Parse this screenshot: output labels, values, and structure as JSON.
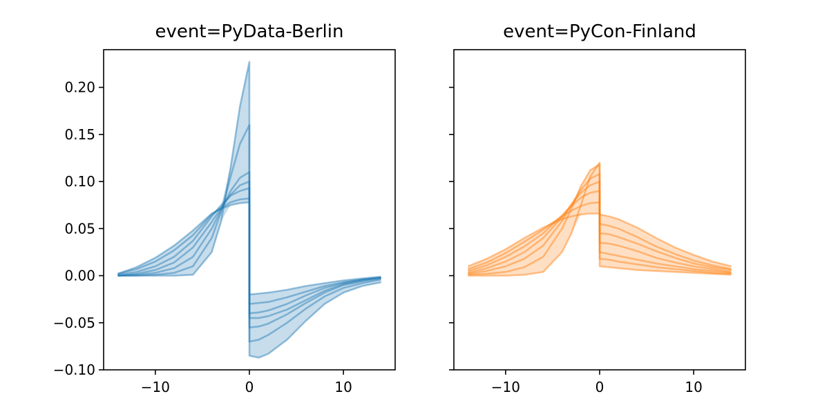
{
  "chart_data": [
    {
      "type": "line",
      "title": "event=PyData-Berlin",
      "color": "#1f77b4",
      "xlim": [
        -15.5,
        15.5
      ],
      "ylim": [
        -0.1,
        0.24
      ],
      "xticks": [
        -10,
        0,
        10
      ],
      "xtick_labels": [
        "−10",
        "0",
        "10"
      ],
      "yticks": [
        -0.1,
        -0.05,
        0.0,
        0.05,
        0.1,
        0.15,
        0.2
      ],
      "ytick_labels": [
        "−0.10",
        "−0.05",
        "0.00",
        "0.05",
        "0.10",
        "0.15",
        "0.20"
      ],
      "show_ytick_labels": true,
      "x": [
        -14,
        -12,
        -10,
        -8,
        -6,
        -4,
        -3,
        -2,
        -1,
        0,
        0,
        1,
        2,
        4,
        6,
        8,
        10,
        12,
        14
      ],
      "series": [
        {
          "values": [
            0.0,
            0.0,
            0.0,
            0.0,
            0.001,
            0.025,
            0.058,
            0.115,
            0.18,
            0.227,
            -0.085,
            -0.087,
            -0.083,
            -0.068,
            -0.048,
            -0.03,
            -0.018,
            -0.011,
            -0.007
          ]
        },
        {
          "values": [
            0.0,
            0.0,
            0.001,
            0.003,
            0.01,
            0.04,
            0.068,
            0.105,
            0.14,
            0.16,
            -0.07,
            -0.068,
            -0.063,
            -0.05,
            -0.035,
            -0.022,
            -0.013,
            -0.008,
            -0.004
          ]
        },
        {
          "values": [
            0.0,
            0.001,
            0.003,
            0.008,
            0.02,
            0.05,
            0.07,
            0.09,
            0.104,
            0.11,
            -0.055,
            -0.054,
            -0.051,
            -0.041,
            -0.029,
            -0.018,
            -0.01,
            -0.006,
            -0.003
          ]
        },
        {
          "values": [
            0.0,
            0.002,
            0.006,
            0.014,
            0.03,
            0.057,
            0.072,
            0.086,
            0.096,
            0.1,
            -0.045,
            -0.045,
            -0.043,
            -0.036,
            -0.026,
            -0.016,
            -0.009,
            -0.005,
            -0.002
          ]
        },
        {
          "values": [
            0.001,
            0.004,
            0.01,
            0.02,
            0.037,
            0.063,
            0.075,
            0.085,
            0.09,
            0.093,
            -0.04,
            -0.039,
            -0.037,
            -0.03,
            -0.021,
            -0.013,
            -0.008,
            -0.004,
            -0.002
          ]
        },
        {
          "values": [
            0.002,
            0.007,
            0.015,
            0.027,
            0.043,
            0.065,
            0.072,
            0.078,
            0.081,
            0.082,
            -0.03,
            -0.029,
            -0.028,
            -0.023,
            -0.017,
            -0.011,
            -0.007,
            -0.004,
            -0.002
          ]
        },
        {
          "values": [
            0.002,
            0.009,
            0.019,
            0.032,
            0.048,
            0.066,
            0.071,
            0.075,
            0.077,
            0.078,
            -0.02,
            -0.019,
            -0.018,
            -0.015,
            -0.011,
            -0.008,
            -0.005,
            -0.003,
            -0.001
          ]
        }
      ]
    },
    {
      "type": "line",
      "title": "event=PyCon-Finland",
      "color": "#ff7f0e",
      "xlim": [
        -15.5,
        15.5
      ],
      "ylim": [
        -0.1,
        0.24
      ],
      "xticks": [
        -10,
        0,
        10
      ],
      "xtick_labels": [
        "−10",
        "0",
        "10"
      ],
      "yticks": [
        -0.1,
        -0.05,
        0.0,
        0.05,
        0.1,
        0.15,
        0.2
      ],
      "ytick_labels": [],
      "show_ytick_labels": false,
      "x": [
        -14,
        -12,
        -10,
        -8,
        -6,
        -4,
        -3,
        -2,
        -1,
        0,
        0,
        1,
        2,
        4,
        6,
        8,
        10,
        12,
        14
      ],
      "series": [
        {
          "values": [
            0.0,
            0.0,
            0.0,
            0.001,
            0.004,
            0.025,
            0.045,
            0.075,
            0.105,
            0.12,
            0.01,
            0.009,
            0.008,
            0.006,
            0.005,
            0.004,
            0.003,
            0.002,
            0.001
          ]
        },
        {
          "values": [
            0.001,
            0.002,
            0.004,
            0.009,
            0.02,
            0.05,
            0.071,
            0.095,
            0.112,
            0.118,
            0.018,
            0.017,
            0.015,
            0.012,
            0.009,
            0.007,
            0.005,
            0.003,
            0.002
          ]
        },
        {
          "values": [
            0.002,
            0.005,
            0.01,
            0.018,
            0.032,
            0.058,
            0.075,
            0.091,
            0.103,
            0.108,
            0.025,
            0.023,
            0.021,
            0.017,
            0.013,
            0.01,
            0.007,
            0.005,
            0.003
          ]
        },
        {
          "values": [
            0.003,
            0.008,
            0.015,
            0.025,
            0.04,
            0.062,
            0.076,
            0.088,
            0.096,
            0.1,
            0.035,
            0.034,
            0.032,
            0.026,
            0.019,
            0.014,
            0.01,
            0.007,
            0.004
          ]
        },
        {
          "values": [
            0.005,
            0.011,
            0.02,
            0.031,
            0.045,
            0.064,
            0.074,
            0.083,
            0.088,
            0.09,
            0.045,
            0.044,
            0.041,
            0.034,
            0.026,
            0.019,
            0.013,
            0.009,
            0.006
          ]
        },
        {
          "values": [
            0.007,
            0.014,
            0.024,
            0.036,
            0.049,
            0.063,
            0.069,
            0.074,
            0.077,
            0.078,
            0.055,
            0.053,
            0.05,
            0.041,
            0.031,
            0.023,
            0.016,
            0.011,
            0.007
          ]
        },
        {
          "values": [
            0.01,
            0.018,
            0.028,
            0.04,
            0.051,
            0.06,
            0.063,
            0.065,
            0.066,
            0.066,
            0.065,
            0.063,
            0.06,
            0.051,
            0.04,
            0.03,
            0.022,
            0.015,
            0.01
          ]
        }
      ]
    }
  ]
}
